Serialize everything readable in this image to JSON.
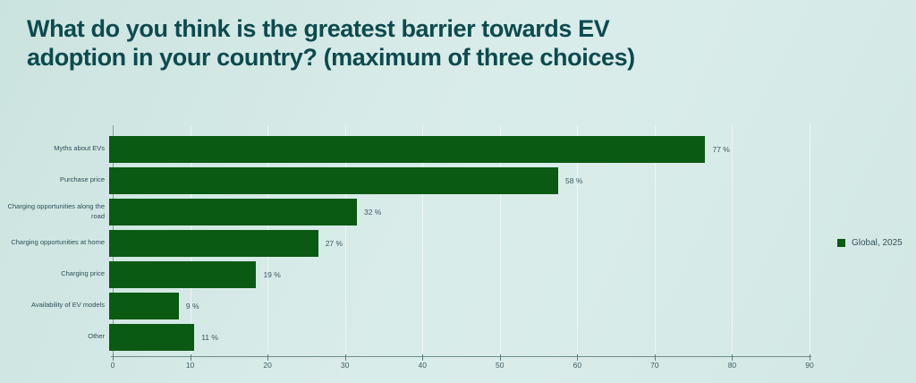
{
  "chart_data": {
    "type": "bar",
    "orientation": "horizontal",
    "title": "What do you think is the greatest barrier towards EV adoption in your country? (maximum of three choices)",
    "categories": [
      "Myths about EVs",
      "Purchase price",
      "Charging opportunities along the road",
      "Charging opportunities at home",
      "Charging price",
      "Availability of EV models",
      "Other"
    ],
    "values": [
      77,
      58,
      32,
      27,
      19,
      9,
      11
    ],
    "value_labels": [
      "77 %",
      "58 %",
      "32 %",
      "27 %",
      "19 %",
      "9 %",
      "11 %"
    ],
    "xlabel": "",
    "ylabel": "",
    "xlim": [
      0,
      90
    ],
    "x_ticks": [
      0,
      10,
      20,
      30,
      40,
      50,
      60,
      70,
      80,
      90
    ],
    "grid": true,
    "legend": {
      "label": "Global, 2025",
      "position": "right"
    },
    "colors": {
      "bar": "#0b5a13",
      "title": "#0d4a4e",
      "axis": "#6f8c8c",
      "text": "#35535a",
      "grid": "rgba(255,255,255,0.55)",
      "background_start": "#cbe3df",
      "background_end": "#d2e8e4"
    }
  }
}
